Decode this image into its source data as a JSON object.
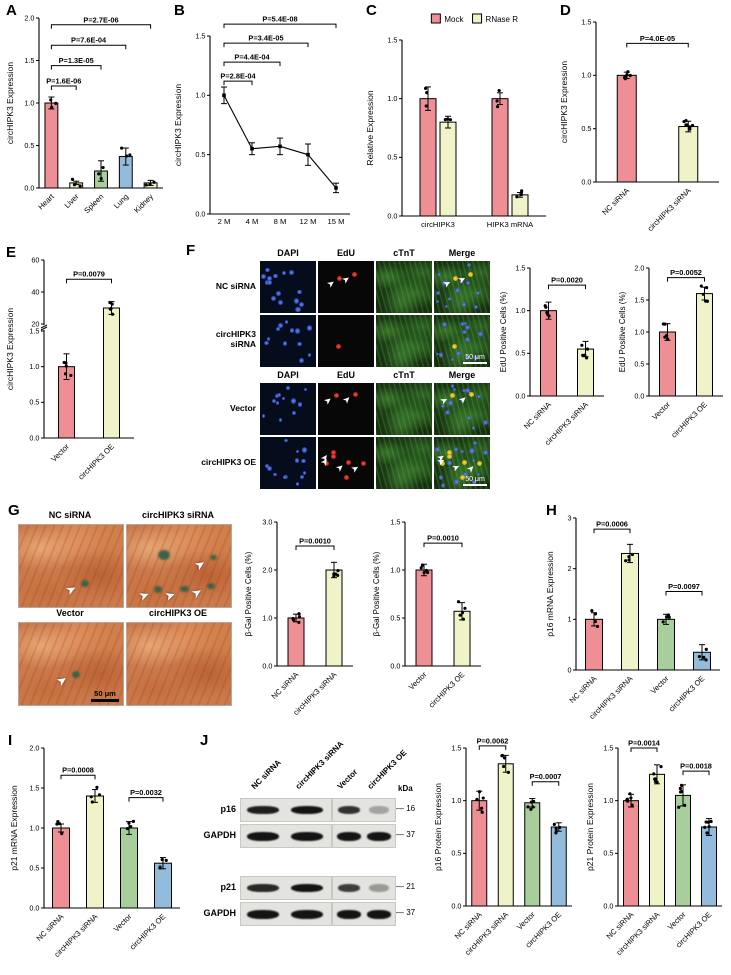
{
  "colors": {
    "pink": "#EE8F95",
    "paleYellow": "#F0F2C8",
    "green": "#A8CE9C",
    "blue": "#93BBDB"
  },
  "panelA": {
    "letter": "A",
    "chart": {
      "type": "bar",
      "ylabel": "circHIPK3 Expression",
      "ylim": [
        0,
        2.0
      ],
      "yticks": [
        "0.0",
        "0.5",
        "1.0",
        "1.5",
        "2.0"
      ],
      "categories": [
        "Heart",
        "Liver",
        "Spleen",
        "Lung",
        "Kidney"
      ],
      "values": [
        1.0,
        0.06,
        0.2,
        0.37,
        0.06
      ],
      "errors": [
        0.07,
        0.02,
        0.12,
        0.1,
        0.03
      ],
      "colorKeys": [
        "pink",
        "paleYellow",
        "green",
        "blue",
        "paleYellow"
      ],
      "dotsPerBar": 3,
      "brackets": [
        {
          "from": 0,
          "to": 1,
          "label": "P=1.6E-06",
          "y": 1.2
        },
        {
          "from": 0,
          "to": 2,
          "label": "P=1.3E-05",
          "y": 1.44
        },
        {
          "from": 0,
          "to": 3,
          "label": "P=7.6E-04",
          "y": 1.68
        },
        {
          "from": 0,
          "to": 4,
          "label": "P=2.7E-06",
          "y": 1.92
        }
      ]
    }
  },
  "panelB": {
    "letter": "B",
    "chart": {
      "type": "line",
      "ylabel": "circHIPK3 Expression",
      "ylim": [
        0,
        1.5
      ],
      "yticks": [
        "0.0",
        "0.5",
        "1.0",
        "1.5"
      ],
      "categories": [
        "2 M",
        "4 M",
        "8 M",
        "12 M",
        "15 M"
      ],
      "values": [
        1.0,
        0.55,
        0.57,
        0.5,
        0.22
      ],
      "errors": [
        0.07,
        0.05,
        0.07,
        0.09,
        0.04
      ],
      "brackets": [
        {
          "from": 0,
          "to": 1,
          "label": "P=2.8E-04",
          "y": 1.12
        },
        {
          "from": 0,
          "to": 2,
          "label": "P=4.4E-04",
          "y": 1.28
        },
        {
          "from": 0,
          "to": 3,
          "label": "P=3.4E-05",
          "y": 1.44
        },
        {
          "from": 0,
          "to": 4,
          "label": "P=5.4E-08",
          "y": 1.6
        }
      ]
    }
  },
  "panelC": {
    "letter": "C",
    "chart": {
      "type": "groupbar",
      "ylabel": "Relative Expression",
      "ylim": [
        0,
        1.5
      ],
      "yticks": [
        "0.0",
        "0.5",
        "1.0",
        "1.5"
      ],
      "categories": [
        "circHIPK3",
        "HIPK3 mRNA"
      ],
      "series": [
        {
          "name": "Mock",
          "colorKey": "pink",
          "values": [
            1.0,
            1.0
          ],
          "errors": [
            0.1,
            0.05
          ]
        },
        {
          "name": "RNase R",
          "colorKey": "paleYellow",
          "values": [
            0.8,
            0.18
          ],
          "errors": [
            0.05,
            0.02
          ]
        }
      ],
      "dotsPerBar": 3
    }
  },
  "panelD": {
    "letter": "D",
    "chart": {
      "type": "bar",
      "ylabel": "circHIPK3 Expression",
      "ylim": [
        0,
        1.5
      ],
      "yticks": [
        "0.0",
        "0.5",
        "1.0",
        "1.5"
      ],
      "categories": [
        "NC siRNA",
        "circHIPK3 siRNA"
      ],
      "values": [
        1.0,
        0.52
      ],
      "errors": [
        0.03,
        0.05
      ],
      "colorKeys": [
        "pink",
        "paleYellow"
      ],
      "dotsPerBar": 7,
      "brackets": [
        {
          "from": 0,
          "to": 1,
          "label": "P=4.0E-05",
          "y": 1.3
        }
      ]
    }
  },
  "panelE": {
    "letter": "E",
    "chart": {
      "type": "brokenbar",
      "ylabel": "circHIPK3 Expression",
      "segments": [
        {
          "ylim": [
            0,
            1.5
          ],
          "yticks": [
            "0.0",
            "0.5",
            "1.0",
            "1.5"
          ]
        },
        {
          "ylim": [
            20,
            60
          ],
          "yticks": [
            "20",
            "40",
            "60"
          ]
        }
      ],
      "categories": [
        "Vector",
        "circHIPK3 OE"
      ],
      "values": [
        1.0,
        30
      ],
      "errors": [
        0.18,
        4
      ],
      "colorKeys": [
        "pink",
        "paleYellow"
      ],
      "dotsPerBar": 5,
      "brackets": [
        {
          "from": 0,
          "to": 1,
          "label": "P=0.0079",
          "y": 48
        }
      ]
    }
  },
  "panelF": {
    "letter": "F",
    "columns": [
      "DAPI",
      "EdU",
      "cTnT",
      "Merge"
    ],
    "rowLabels": [
      "NC siRNA",
      "circHIPK3 siRNA",
      "Vector",
      "circHIPK3 OE"
    ],
    "scaleBar": "50 μm",
    "chart1": {
      "type": "bar",
      "ylabel": "EdU Positive Cells (%)",
      "ylim": [
        0,
        1.5
      ],
      "yticks": [
        "0.0",
        "0.5",
        "1.0",
        "1.5"
      ],
      "categories": [
        "NC siRNA",
        "circHIPK3 siRNA"
      ],
      "values": [
        1.0,
        0.55
      ],
      "errors": [
        0.1,
        0.09
      ],
      "colorKeys": [
        "pink",
        "paleYellow"
      ],
      "dotsPerBar": 5,
      "brackets": [
        {
          "from": 0,
          "to": 1,
          "label": "P=0.0020",
          "y": 1.3
        }
      ]
    },
    "chart2": {
      "type": "bar",
      "ylabel": "EdU Positive Cells (%)",
      "ylim": [
        0,
        2.0
      ],
      "yticks": [
        "0.0",
        "0.5",
        "1.0",
        "1.5",
        "2.0"
      ],
      "categories": [
        "Vector",
        "circHIPK3 OE"
      ],
      "values": [
        1.0,
        1.6
      ],
      "errors": [
        0.13,
        0.1
      ],
      "colorKeys": [
        "pink",
        "paleYellow"
      ],
      "dotsPerBar": 5,
      "brackets": [
        {
          "from": 0,
          "to": 1,
          "label": "P=0.0052",
          "y": 1.85
        }
      ]
    }
  },
  "panelG": {
    "letter": "G",
    "imageLabels": [
      "NC siRNA",
      "circHIPK3 siRNA",
      "Vector",
      "circHIPK3 OE"
    ],
    "scaleBar": "50 μm",
    "chart1": {
      "type": "bar",
      "ylabel": "β-Gal Positive Cells (%)",
      "ylim": [
        0,
        3.0
      ],
      "yticks": [
        "0.0",
        "1.0",
        "2.0",
        "3.0"
      ],
      "categories": [
        "NC siRNA",
        "circHIPK3 siRNA"
      ],
      "values": [
        1.0,
        2.0
      ],
      "errors": [
        0.08,
        0.16
      ],
      "colorKeys": [
        "pink",
        "paleYellow"
      ],
      "dotsPerBar": 5,
      "brackets": [
        {
          "from": 0,
          "to": 1,
          "label": "P=0.0010",
          "y": 2.5
        }
      ]
    },
    "chart2": {
      "type": "bar",
      "ylabel": "β-Gal Positive Cells (%)",
      "ylim": [
        0,
        1.5
      ],
      "yticks": [
        "0.0",
        "0.5",
        "1.0",
        "1.5"
      ],
      "categories": [
        "Vector",
        "circHIPK3 OE"
      ],
      "values": [
        1.0,
        0.57
      ],
      "errors": [
        0.06,
        0.09
      ],
      "colorKeys": [
        "pink",
        "paleYellow"
      ],
      "dotsPerBar": 5,
      "brackets": [
        {
          "from": 0,
          "to": 1,
          "label": "P=0.0010",
          "y": 1.28
        }
      ]
    }
  },
  "panelH": {
    "letter": "H",
    "chart": {
      "type": "bar",
      "ylabel": "p16 mRNA Expression",
      "ylim": [
        0,
        3
      ],
      "yticks": [
        "0",
        "1",
        "2",
        "3"
      ],
      "categories": [
        "NC siRNA",
        "circHIPK3 siRNA",
        "Vector",
        "circHIPK3 OE"
      ],
      "values": [
        1.0,
        2.3,
        1.0,
        0.35
      ],
      "errors": [
        0.13,
        0.18,
        0.1,
        0.15
      ],
      "colorKeys": [
        "pink",
        "paleYellow",
        "green",
        "blue"
      ],
      "dotsPerBar": 4,
      "brackets": [
        {
          "from": 0,
          "to": 1,
          "label": "P=0.0006",
          "y": 2.78
        },
        {
          "from": 2,
          "to": 3,
          "label": "P=0.0097",
          "y": 1.55
        }
      ]
    }
  },
  "panelI": {
    "letter": "I",
    "chart": {
      "type": "bar",
      "ylabel": "p21 mRNA Expression",
      "ylim": [
        0,
        2.0
      ],
      "yticks": [
        "0.0",
        "0.5",
        "1.0",
        "1.5",
        "2.0"
      ],
      "categories": [
        "NC siRNA",
        "circHIPK3 siRNA",
        "Vector",
        "circHIPK3 OE"
      ],
      "values": [
        1.0,
        1.4,
        1.0,
        0.56
      ],
      "errors": [
        0.05,
        0.08,
        0.08,
        0.07
      ],
      "colorKeys": [
        "pink",
        "paleYellow",
        "green",
        "blue"
      ],
      "dotsPerBar": 4,
      "brackets": [
        {
          "from": 0,
          "to": 1,
          "label": "P=0.0008",
          "y": 1.66
        },
        {
          "from": 2,
          "to": 3,
          "label": "P=0.0032",
          "y": 1.38
        }
      ]
    }
  },
  "panelJ": {
    "letter": "J",
    "blot": {
      "kdaHeader": "kDa",
      "laneLabels": [
        "NC siRNA",
        "circHIPK3 siRNA",
        "Vector",
        "circHIPK3 OE"
      ],
      "rows": [
        {
          "label": "p16",
          "kda": "16",
          "intensities": [
            0.95,
            1.0,
            0.85,
            0.3
          ]
        },
        {
          "label": "GAPDH",
          "kda": "37",
          "intensities": [
            1,
            1,
            1,
            1
          ]
        },
        {
          "label": "p21",
          "kda": "21",
          "intensities": [
            0.9,
            1.0,
            0.8,
            0.35
          ]
        },
        {
          "label": "GAPDH",
          "kda": "37",
          "intensities": [
            1,
            1,
            1,
            1
          ]
        }
      ]
    },
    "chart1": {
      "type": "bar",
      "ylabel": "p16 Protein Expression",
      "ylim": [
        0,
        1.5
      ],
      "yticks": [
        "0.0",
        "0.5",
        "1.0",
        "1.5"
      ],
      "categories": [
        "NC siRNA",
        "circHIPK3 siRNA",
        "Vector",
        "circHIPK3 OE"
      ],
      "values": [
        1.0,
        1.35,
        0.98,
        0.75
      ],
      "errors": [
        0.09,
        0.08,
        0.04,
        0.04
      ],
      "colorKeys": [
        "pink",
        "paleYellow",
        "green",
        "blue"
      ],
      "dotsPerBar": 5,
      "brackets": [
        {
          "from": 0,
          "to": 1,
          "label": "P=0.0062",
          "y": 1.52
        },
        {
          "from": 2,
          "to": 3,
          "label": "P=0.0007",
          "y": 1.18
        }
      ]
    },
    "chart2": {
      "type": "bar",
      "ylabel": "p21 Protein Expression",
      "ylim": [
        0,
        1.5
      ],
      "yticks": [
        "0.0",
        "0.5",
        "1.0",
        "1.5"
      ],
      "categories": [
        "NC siRNA",
        "circHIPK3 siRNA",
        "Vector",
        "circHIPK3 OE"
      ],
      "values": [
        1.0,
        1.25,
        1.05,
        0.75
      ],
      "errors": [
        0.06,
        0.09,
        0.1,
        0.08
      ],
      "colorKeys": [
        "pink",
        "paleYellow",
        "green",
        "blue"
      ],
      "dotsPerBar": 6,
      "brackets": [
        {
          "from": 0,
          "to": 1,
          "label": "P=0.0014",
          "y": 1.5
        },
        {
          "from": 2,
          "to": 3,
          "label": "P=0.0018",
          "y": 1.28
        }
      ]
    }
  }
}
